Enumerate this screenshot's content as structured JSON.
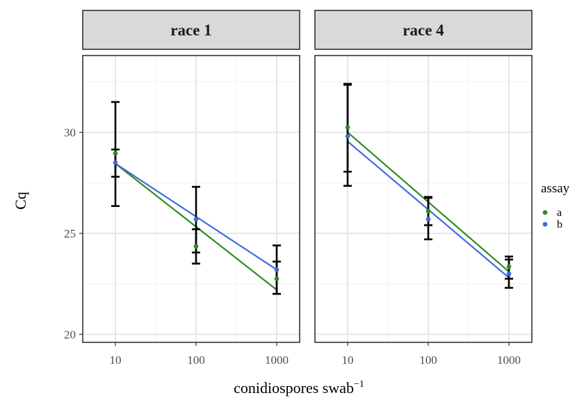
{
  "chart_data": {
    "type": "line",
    "xlabel": "conidiospores swab",
    "xlabel_superscript": "−1",
    "ylabel": "Cq",
    "x_scale": "log10",
    "x_ticks": [
      10,
      100,
      1000
    ],
    "x_tick_labels": [
      "10",
      "100",
      "1000"
    ],
    "ylim": [
      19.6,
      33.8
    ],
    "y_ticks": [
      20,
      25,
      30
    ],
    "y_tick_labels": [
      "20",
      "25",
      "30"
    ],
    "grid": true,
    "legend": {
      "title": "assay",
      "position": "right",
      "entries": [
        {
          "label": "a",
          "color": "#2e8b22"
        },
        {
          "label": "b",
          "color": "#4169e1"
        }
      ]
    },
    "panels": [
      {
        "title": "race 1",
        "series": [
          {
            "name": "a",
            "color": "#2e8b22",
            "points": [
              {
                "x": 10,
                "y": 28.95
              },
              {
                "x": 100,
                "y": 24.35
              },
              {
                "x": 1000,
                "y": 22.75
              }
            ],
            "fit": [
              {
                "x": 10,
                "y": 28.45
              },
              {
                "x": 1000,
                "y": 22.2
              }
            ],
            "errors": [
              {
                "x": 10,
                "low": 26.35,
                "high": 31.5
              },
              {
                "x": 100,
                "low": 23.5,
                "high": 25.2
              },
              {
                "x": 1000,
                "low": 22.0,
                "high": 23.6
              }
            ]
          },
          {
            "name": "b",
            "color": "#4169e1",
            "points": [
              {
                "x": 10,
                "y": 28.5
              },
              {
                "x": 100,
                "y": 25.7
              },
              {
                "x": 1000,
                "y": 23.2
              }
            ],
            "fit": [
              {
                "x": 10,
                "y": 28.45
              },
              {
                "x": 1000,
                "y": 23.2
              }
            ],
            "errors": [
              {
                "x": 10,
                "low": 27.8,
                "high": 29.15
              },
              {
                "x": 100,
                "low": 24.05,
                "high": 27.3
              },
              {
                "x": 1000,
                "low": 22.0,
                "high": 24.4
              }
            ]
          }
        ]
      },
      {
        "title": "race 4",
        "series": [
          {
            "name": "a",
            "color": "#2e8b22",
            "points": [
              {
                "x": 10,
                "y": 30.25
              },
              {
                "x": 100,
                "y": 26.1
              },
              {
                "x": 1000,
                "y": 23.35
              }
            ],
            "fit": [
              {
                "x": 10,
                "y": 30.0
              },
              {
                "x": 1000,
                "y": 23.1
              }
            ],
            "errors": [
              {
                "x": 10,
                "low": 28.05,
                "high": 32.4
              },
              {
                "x": 100,
                "low": 25.4,
                "high": 26.75
              },
              {
                "x": 1000,
                "low": 22.3,
                "high": 23.85
              }
            ]
          },
          {
            "name": "b",
            "color": "#4169e1",
            "points": [
              {
                "x": 10,
                "y": 29.8
              },
              {
                "x": 100,
                "y": 25.7
              },
              {
                "x": 1000,
                "y": 23.0
              }
            ],
            "fit": [
              {
                "x": 10,
                "y": 29.55
              },
              {
                "x": 1000,
                "y": 22.8
              }
            ],
            "errors": [
              {
                "x": 10,
                "low": 27.35,
                "high": 32.35
              },
              {
                "x": 100,
                "low": 24.7,
                "high": 26.8
              },
              {
                "x": 1000,
                "low": 22.75,
                "high": 23.7
              }
            ]
          }
        ]
      }
    ]
  }
}
